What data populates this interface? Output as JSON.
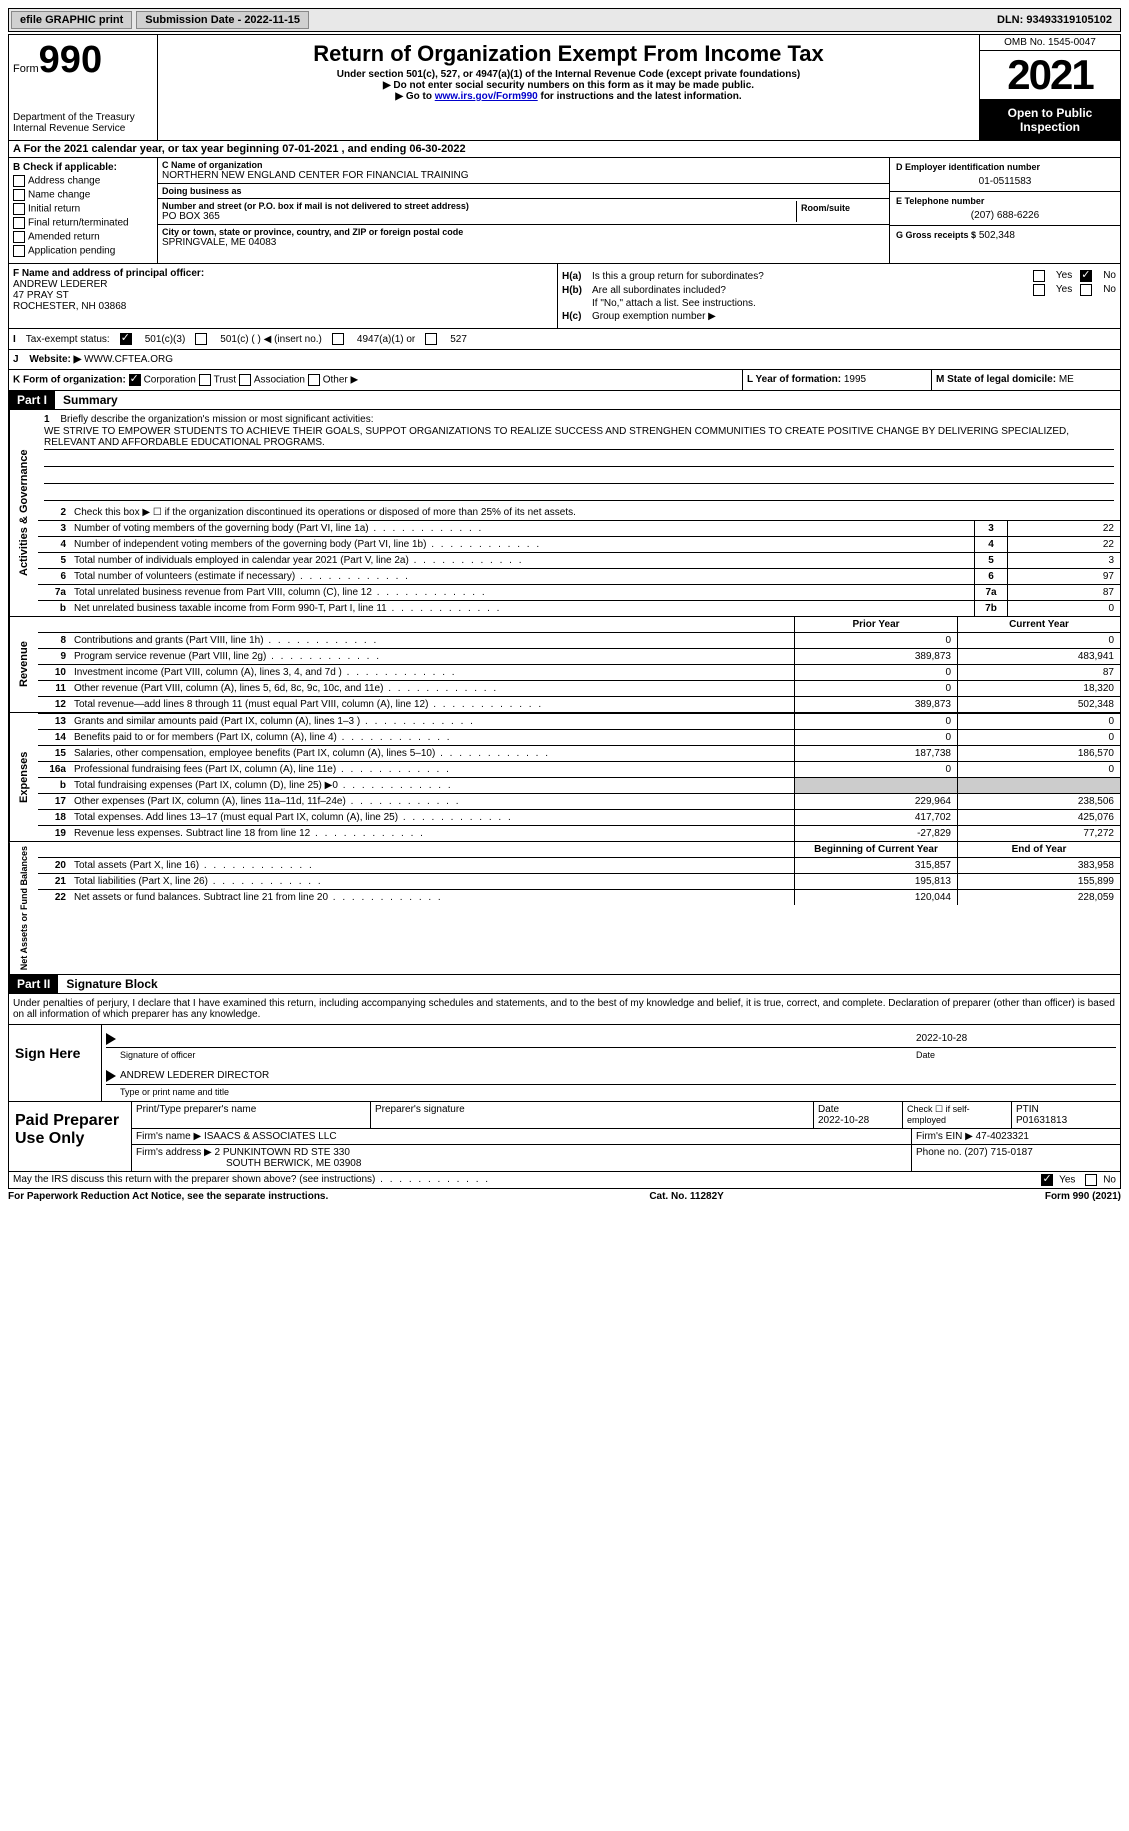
{
  "topbar": {
    "efile": "efile GRAPHIC print",
    "submission_label": "Submission Date - 2022-11-15",
    "dln": "DLN: 93493319105102"
  },
  "header": {
    "form_word": "Form",
    "form_number": "990",
    "dept": "Department of the Treasury\nInternal Revenue Service",
    "title": "Return of Organization Exempt From Income Tax",
    "subtitle": "Under section 501(c), 527, or 4947(a)(1) of the Internal Revenue Code (except private foundations)",
    "note1": "▶ Do not enter social security numbers on this form as it may be made public.",
    "note2_prefix": "▶ Go to ",
    "note2_link": "www.irs.gov/Form990",
    "note2_suffix": " for instructions and the latest information.",
    "omb": "OMB No. 1545-0047",
    "year": "2021",
    "open": "Open to Public Inspection"
  },
  "section_a": "A For the 2021 calendar year, or tax year beginning 07-01-2021   , and ending 06-30-2022",
  "section_b": {
    "label": "B Check if applicable:",
    "items": [
      "Address change",
      "Name change",
      "Initial return",
      "Final return/terminated",
      "Amended return",
      "Application pending"
    ]
  },
  "section_c": {
    "name_label": "C Name of organization",
    "name": "NORTHERN NEW ENGLAND CENTER FOR FINANCIAL TRAINING",
    "dba_label": "Doing business as",
    "dba": "",
    "addr_label": "Number and street (or P.O. box if mail is not delivered to street address)",
    "room_label": "Room/suite",
    "addr": "PO BOX 365",
    "city_label": "City or town, state or province, country, and ZIP or foreign postal code",
    "city": "SPRINGVALE, ME  04083"
  },
  "section_d": {
    "ein_label": "D Employer identification number",
    "ein": "01-0511583",
    "phone_label": "E Telephone number",
    "phone": "(207) 688-6226",
    "gross_label": "G Gross receipts $",
    "gross": "502,348"
  },
  "section_f": {
    "label": "F  Name and address of principal officer:",
    "name": "ANDREW LEDERER",
    "addr1": "47 PRAY ST",
    "addr2": "ROCHESTER, NH  03868"
  },
  "section_h": {
    "ha_label": "H(a)",
    "ha_text": "Is this a group return for subordinates?",
    "hb_label": "H(b)",
    "hb_text": "Are all subordinates included?",
    "hb_note": "If \"No,\" attach a list. See instructions.",
    "hc_label": "H(c)",
    "hc_text": "Group exemption number ▶"
  },
  "section_i": {
    "label": "I",
    "text": "Tax-exempt status:",
    "opt1": "501(c)(3)",
    "opt2": "501(c) (  ) ◀ (insert no.)",
    "opt3": "4947(a)(1) or",
    "opt4": "527"
  },
  "section_j": {
    "label": "J",
    "text": "Website: ▶",
    "value": "WWW.CFTEA.ORG"
  },
  "section_k": {
    "label": "K Form of organization:",
    "opts": [
      "Corporation",
      "Trust",
      "Association",
      "Other ▶"
    ]
  },
  "section_l": {
    "label": "L Year of formation:",
    "value": "1995"
  },
  "section_m": {
    "label": "M State of legal domicile:",
    "value": "ME"
  },
  "part1": {
    "header": "Part I",
    "title": "Summary"
  },
  "mission": {
    "label": "1",
    "prompt": "Briefly describe the organization's mission or most significant activities:",
    "text": "WE STRIVE TO EMPOWER STUDENTS TO ACHIEVE THEIR GOALS, SUPPOT ORGANIZATIONS TO REALIZE SUCCESS AND STRENGHEN COMMUNITIES TO CREATE POSITIVE CHANGE BY DELIVERING SPECIALIZED, RELEVANT AND AFFORDABLE EDUCATIONAL PROGRAMS."
  },
  "activities": {
    "side": "Activities & Governance",
    "line2": "Check this box ▶ ☐ if the organization discontinued its operations or disposed of more than 25% of its net assets.",
    "rows": [
      {
        "n": "3",
        "desc": "Number of voting members of the governing body (Part VI, line 1a)",
        "box": "3",
        "val": "22"
      },
      {
        "n": "4",
        "desc": "Number of independent voting members of the governing body (Part VI, line 1b)",
        "box": "4",
        "val": "22"
      },
      {
        "n": "5",
        "desc": "Total number of individuals employed in calendar year 2021 (Part V, line 2a)",
        "box": "5",
        "val": "3"
      },
      {
        "n": "6",
        "desc": "Total number of volunteers (estimate if necessary)",
        "box": "6",
        "val": "97"
      },
      {
        "n": "7a",
        "desc": "Total unrelated business revenue from Part VIII, column (C), line 12",
        "box": "7a",
        "val": "87"
      },
      {
        "n": "b",
        "desc": "Net unrelated business taxable income from Form 990-T, Part I, line 11",
        "box": "7b",
        "val": "0"
      }
    ]
  },
  "revenue": {
    "side": "Revenue",
    "header_prior": "Prior Year",
    "header_curr": "Current Year",
    "rows": [
      {
        "n": "8",
        "desc": "Contributions and grants (Part VIII, line 1h)",
        "prior": "0",
        "curr": "0"
      },
      {
        "n": "9",
        "desc": "Program service revenue (Part VIII, line 2g)",
        "prior": "389,873",
        "curr": "483,941"
      },
      {
        "n": "10",
        "desc": "Investment income (Part VIII, column (A), lines 3, 4, and 7d )",
        "prior": "0",
        "curr": "87"
      },
      {
        "n": "11",
        "desc": "Other revenue (Part VIII, column (A), lines 5, 6d, 8c, 9c, 10c, and 11e)",
        "prior": "0",
        "curr": "18,320"
      },
      {
        "n": "12",
        "desc": "Total revenue—add lines 8 through 11 (must equal Part VIII, column (A), line 12)",
        "prior": "389,873",
        "curr": "502,348"
      }
    ]
  },
  "expenses": {
    "side": "Expenses",
    "rows": [
      {
        "n": "13",
        "desc": "Grants and similar amounts paid (Part IX, column (A), lines 1–3 )",
        "prior": "0",
        "curr": "0"
      },
      {
        "n": "14",
        "desc": "Benefits paid to or for members (Part IX, column (A), line 4)",
        "prior": "0",
        "curr": "0"
      },
      {
        "n": "15",
        "desc": "Salaries, other compensation, employee benefits (Part IX, column (A), lines 5–10)",
        "prior": "187,738",
        "curr": "186,570"
      },
      {
        "n": "16a",
        "desc": "Professional fundraising fees (Part IX, column (A), line 11e)",
        "prior": "0",
        "curr": "0"
      },
      {
        "n": "b",
        "desc": "Total fundraising expenses (Part IX, column (D), line 25) ▶0",
        "prior": "",
        "curr": "",
        "grey": true
      },
      {
        "n": "17",
        "desc": "Other expenses (Part IX, column (A), lines 11a–11d, 11f–24e)",
        "prior": "229,964",
        "curr": "238,506"
      },
      {
        "n": "18",
        "desc": "Total expenses. Add lines 13–17 (must equal Part IX, column (A), line 25)",
        "prior": "417,702",
        "curr": "425,076"
      },
      {
        "n": "19",
        "desc": "Revenue less expenses. Subtract line 18 from line 12",
        "prior": "-27,829",
        "curr": "77,272"
      }
    ]
  },
  "netassets": {
    "side": "Net Assets or Fund Balances",
    "header_prior": "Beginning of Current Year",
    "header_curr": "End of Year",
    "rows": [
      {
        "n": "20",
        "desc": "Total assets (Part X, line 16)",
        "prior": "315,857",
        "curr": "383,958"
      },
      {
        "n": "21",
        "desc": "Total liabilities (Part X, line 26)",
        "prior": "195,813",
        "curr": "155,899"
      },
      {
        "n": "22",
        "desc": "Net assets or fund balances. Subtract line 21 from line 20",
        "prior": "120,044",
        "curr": "228,059"
      }
    ]
  },
  "part2": {
    "header": "Part II",
    "title": "Signature Block",
    "penalties": "Under penalties of perjury, I declare that I have examined this return, including accompanying schedules and statements, and to the best of my knowledge and belief, it is true, correct, and complete. Declaration of preparer (other than officer) is based on all information of which preparer has any knowledge."
  },
  "sign": {
    "label": "Sign Here",
    "sig_label": "Signature of officer",
    "date": "2022-10-28",
    "date_label": "Date",
    "name": "ANDREW LEDERER  DIRECTOR",
    "name_label": "Type or print name and title"
  },
  "preparer": {
    "label": "Paid Preparer Use Only",
    "print_label": "Print/Type preparer's name",
    "sig_label": "Preparer's signature",
    "date_label": "Date",
    "date": "2022-10-28",
    "check_label": "Check ☐ if self-employed",
    "ptin_label": "PTIN",
    "ptin": "P01631813",
    "firm_name_label": "Firm's name    ▶",
    "firm_name": "ISAACS & ASSOCIATES LLC",
    "firm_ein_label": "Firm's EIN ▶",
    "firm_ein": "47-4023321",
    "firm_addr_label": "Firm's address ▶",
    "firm_addr1": "2 PUNKINTOWN RD STE 330",
    "firm_addr2": "SOUTH BERWICK, ME  03908",
    "phone_label": "Phone no.",
    "phone": "(207) 715-0187"
  },
  "discuss": {
    "text": "May the IRS discuss this return with the preparer shown above? (see instructions)",
    "yes": "Yes",
    "no": "No"
  },
  "footer": {
    "left": "For Paperwork Reduction Act Notice, see the separate instructions.",
    "mid": "Cat. No. 11282Y",
    "right": "Form 990 (2021)"
  }
}
